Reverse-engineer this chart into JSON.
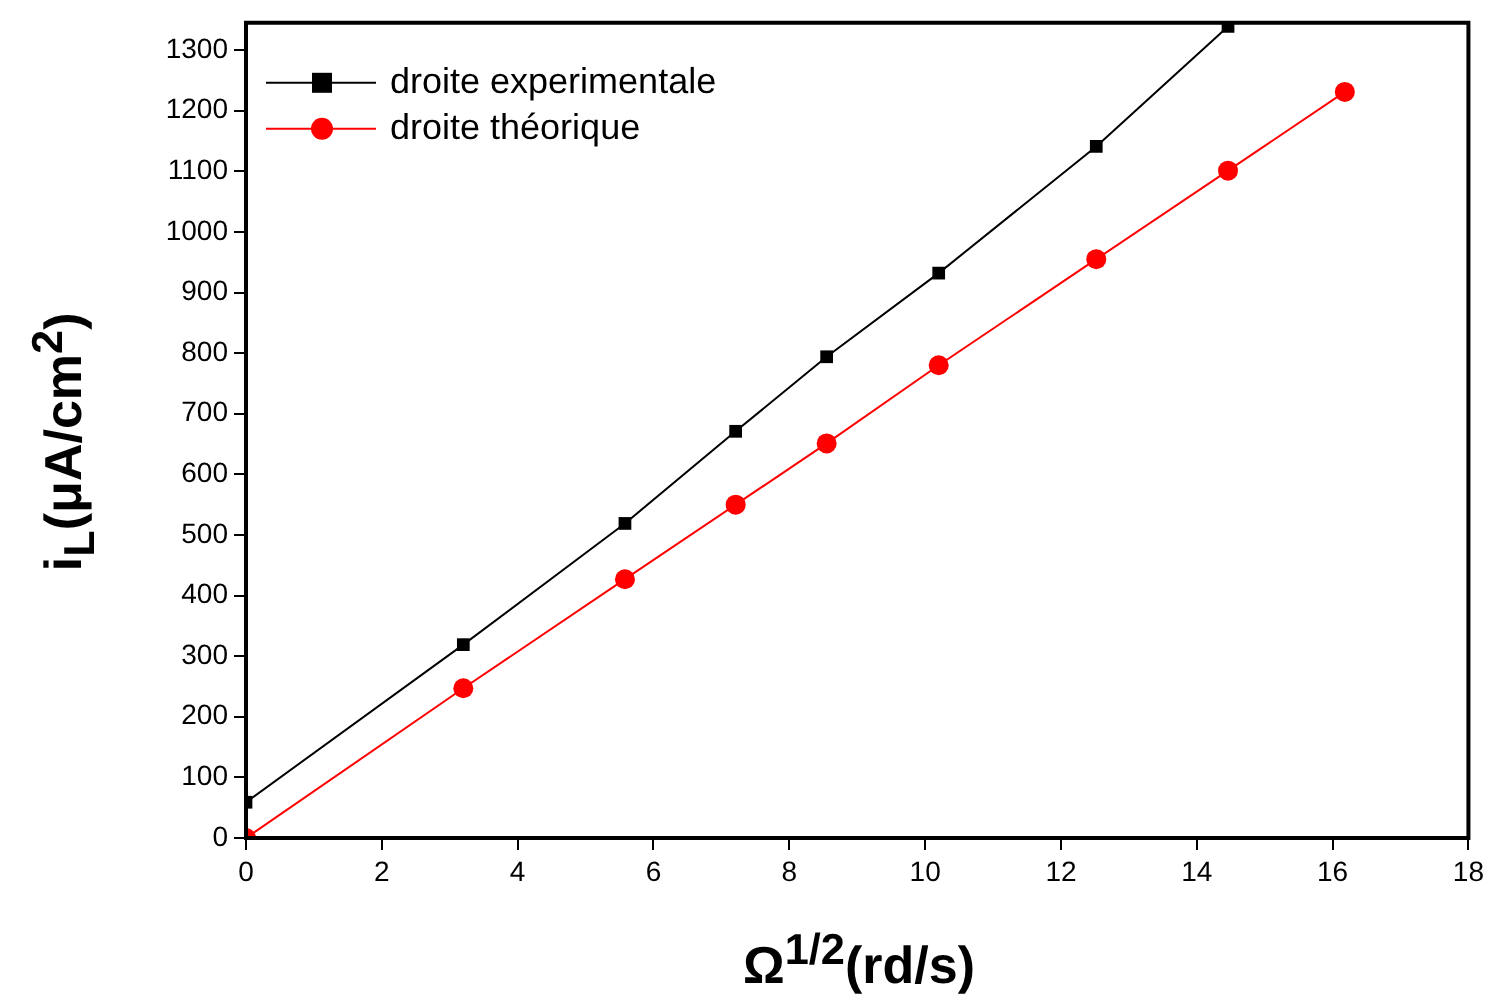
{
  "chart_data": {
    "type": "line",
    "xlabel": "Ω$^{1/2}$(rd/s)",
    "ylabel": "i$_{L}$(μA/cm$^{2}$)",
    "xlim": [
      0,
      18
    ],
    "xticks": [
      0,
      2,
      4,
      6,
      8,
      10,
      12,
      14,
      16,
      18
    ],
    "ylim": [
      0,
      1345
    ],
    "yticks": [
      0,
      100,
      200,
      300,
      400,
      500,
      600,
      700,
      800,
      900,
      1000,
      1100,
      1200,
      1300
    ],
    "grid": false,
    "legend": "top left",
    "series": [
      {
        "name": "droite experimentale",
        "color": "#000000",
        "marker": "square",
        "x": [
          0,
          3.2,
          5.58,
          7.21,
          8.55,
          10.2,
          12.52,
          14.46
        ],
        "values": [
          59,
          319,
          519,
          671,
          794,
          932,
          1141,
          1339
        ]
      },
      {
        "name": "droite théorique",
        "color": "#ff0000",
        "marker": "circle",
        "x": [
          0,
          3.2,
          5.58,
          7.21,
          8.55,
          10.2,
          12.52,
          14.46,
          16.18
        ],
        "values": [
          0,
          247,
          427,
          550,
          651,
          780,
          955,
          1101,
          1231
        ]
      }
    ]
  }
}
